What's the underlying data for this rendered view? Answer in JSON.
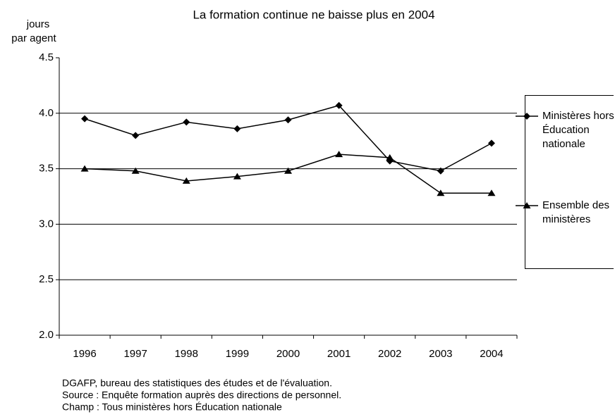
{
  "chart_data": {
    "type": "line",
    "title": "La formation continue ne baisse plus en 2004",
    "y_label": [
      "jours",
      "par agent"
    ],
    "categories": [
      "1996",
      "1997",
      "1998",
      "1999",
      "2000",
      "2001",
      "2002",
      "2003",
      "2004"
    ],
    "series": [
      {
        "name": "Ministères hors Éducation nationale",
        "color": "#000000",
        "marker": "diamond",
        "values": [
          3.95,
          3.8,
          3.92,
          3.86,
          3.94,
          4.07,
          3.57,
          3.48,
          3.73
        ]
      },
      {
        "name": "Ensemble des ministères",
        "color": "#000000",
        "marker": "triangle",
        "values": [
          3.5,
          3.48,
          3.39,
          3.43,
          3.48,
          3.63,
          3.6,
          3.28,
          3.28
        ]
      }
    ],
    "ylim": [
      2.0,
      4.5
    ],
    "yticks": [
      {
        "value": 2.0,
        "label": "2.0"
      },
      {
        "value": 2.5,
        "label": "2.5"
      },
      {
        "value": 3.0,
        "label": "3.0"
      },
      {
        "value": 3.5,
        "label": "3.5"
      },
      {
        "value": 4.0,
        "label": "4.0"
      },
      {
        "value": 4.5,
        "label": "4.5"
      }
    ],
    "grid": true,
    "legend": "right",
    "notes": [
      "DGAFP, bureau des statistiques des études et de l'évaluation.",
      "Source : Enquête formation auprès des directions de personnel.",
      "Champ : Tous ministères hors Éducation nationale"
    ]
  }
}
